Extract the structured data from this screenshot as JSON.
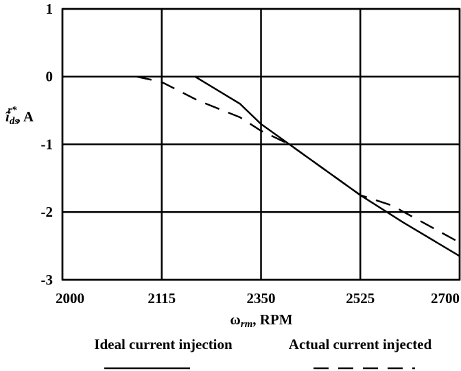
{
  "chart_data": {
    "type": "line",
    "x_label": {
      "symbol": "ω",
      "subscript": "rm",
      "unit": ", RPM"
    },
    "y_label": {
      "symbol": "ĩ",
      "subscript": "ds",
      "superscript": "r*",
      "unit": ", A"
    },
    "xlim": [
      2000,
      2700
    ],
    "xticks": [
      2000,
      2115,
      2350,
      2525,
      2700
    ],
    "ylim": [
      -3,
      1
    ],
    "yticks": [
      -3,
      -2,
      -1,
      0,
      1
    ],
    "grid": true,
    "series": [
      {
        "name": "Ideal current injection",
        "color": "#000000",
        "dash": "solid",
        "x": [
          2055,
          2194,
          2300,
          2350,
          2400,
          2450,
          2525,
          2600,
          2700
        ],
        "values": [
          0,
          0,
          -0.4,
          -0.7,
          -1.0,
          -1.3,
          -1.75,
          -2.15,
          -2.65
        ]
      },
      {
        "name": "Actual current injected",
        "color": "#000000",
        "dash": "dashed",
        "x": [
          2086,
          2115,
          2200,
          2300,
          2350,
          2400,
          2475,
          2525,
          2580,
          2700
        ],
        "values": [
          0,
          -0.08,
          -0.35,
          -0.6,
          -0.8,
          -1.0,
          -1.45,
          -1.75,
          -1.9,
          -2.45
        ]
      }
    ]
  }
}
